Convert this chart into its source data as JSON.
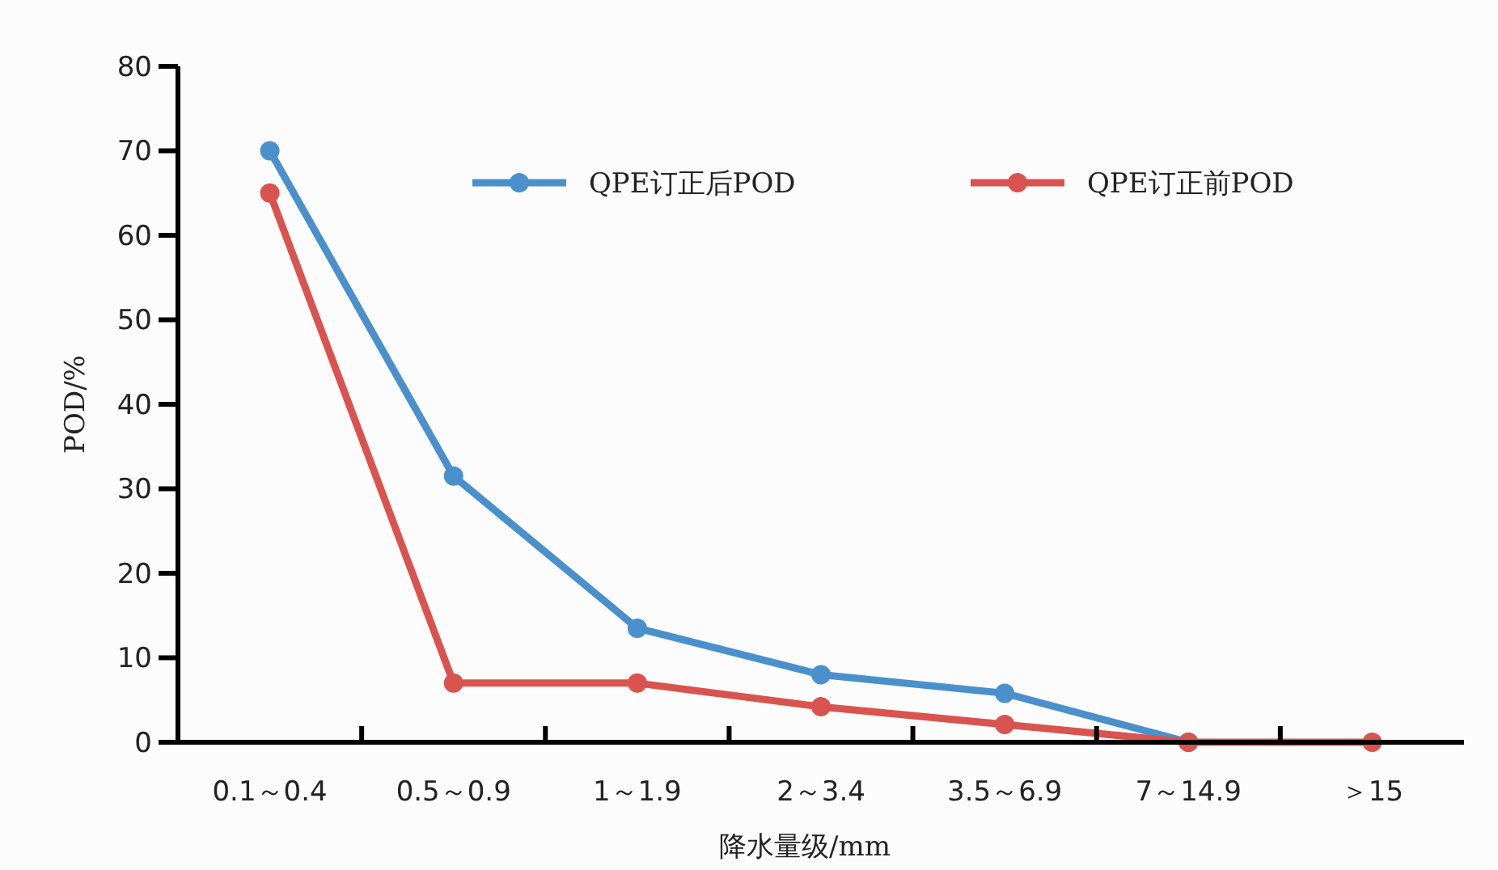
{
  "chart_data": {
    "type": "line",
    "xlabel": "降水量级/mm",
    "ylabel": "POD/%",
    "categories": [
      "0.1～0.4",
      "0.5～0.9",
      "1～1.9",
      "2～3.4",
      "3.5～6.9",
      "7～14.9",
      "＞15"
    ],
    "series": [
      {
        "name": "QPE订正后POD",
        "color": "#4a90cc",
        "values": [
          70,
          31.5,
          13.5,
          8,
          5.8,
          0,
          null
        ]
      },
      {
        "name": "QPE订正前POD",
        "color": "#d9534f",
        "values": [
          65,
          7,
          7,
          4.2,
          2.1,
          0,
          0
        ]
      }
    ],
    "ylim": [
      0,
      80
    ],
    "yticks": [
      0,
      10,
      20,
      30,
      40,
      50,
      60,
      70,
      80
    ],
    "grid": false,
    "legend": "top right",
    "marker": "circle",
    "line_style": "solid"
  }
}
